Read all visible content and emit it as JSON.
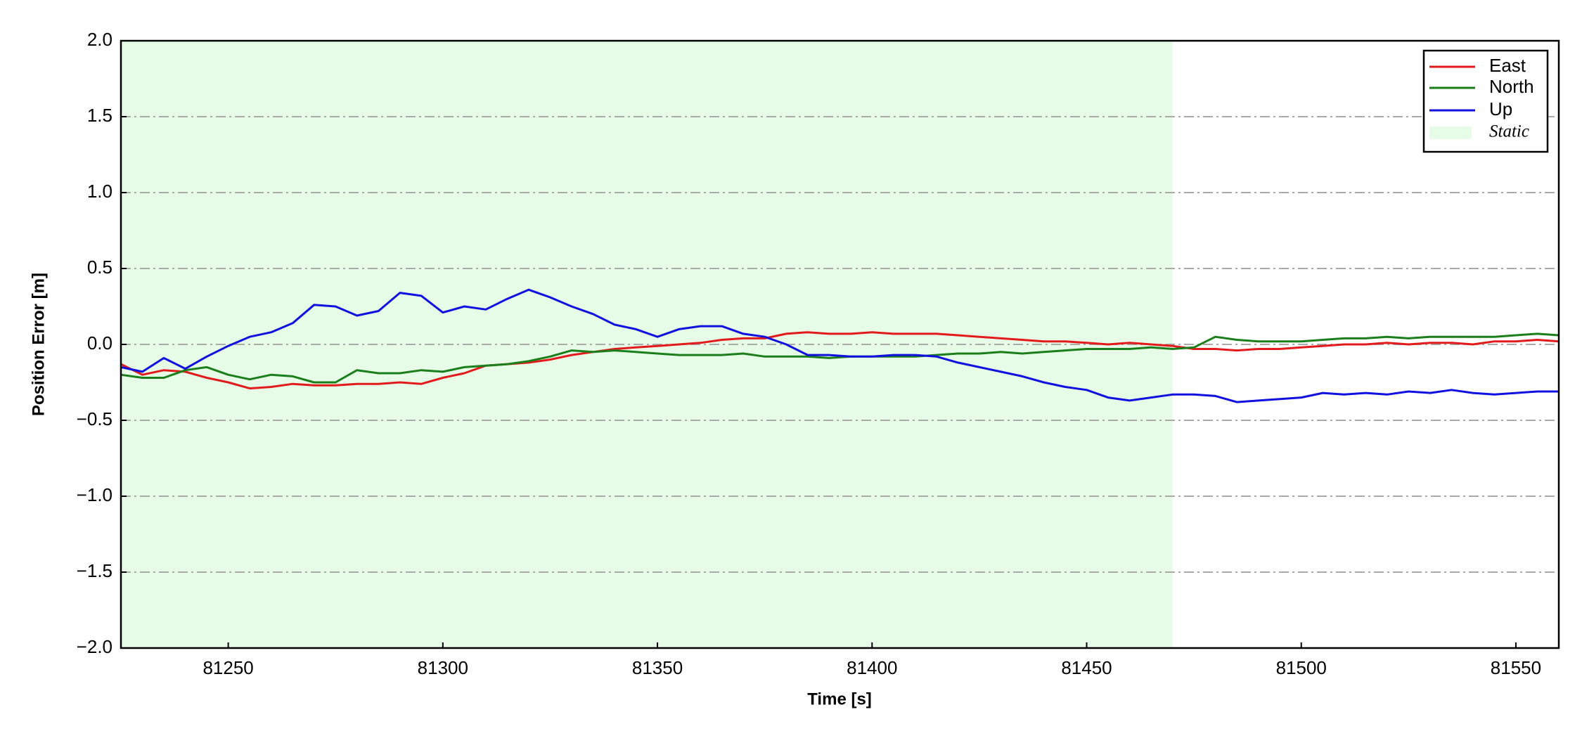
{
  "chart_data": {
    "type": "line",
    "xlabel": "Time [s]",
    "ylabel": "Position Error [m]",
    "xlim": [
      81225,
      81560
    ],
    "ylim": [
      -2,
      2
    ],
    "xticks": [
      81250,
      81300,
      81350,
      81400,
      81450,
      81500,
      81550
    ],
    "yticks": [
      {
        "value": -2,
        "label": "−2.0"
      },
      {
        "value": -1.5,
        "label": "−1.5"
      },
      {
        "value": -1,
        "label": "−1.0"
      },
      {
        "value": -0.5,
        "label": "−0.5"
      },
      {
        "value": 0,
        "label": "0.0"
      },
      0.5,
      {
        "value": 1,
        "label": "1.0"
      },
      1.5,
      {
        "value": 2,
        "label": "2.0"
      }
    ],
    "grid": true,
    "legend": "upper right",
    "spans": [
      {
        "name": "Static",
        "start": 81225,
        "end": 81470,
        "color": "#e6fce6"
      }
    ],
    "x": [
      81225,
      81230,
      81235,
      81240,
      81245,
      81250,
      81255,
      81260,
      81265,
      81270,
      81275,
      81280,
      81285,
      81290,
      81295,
      81300,
      81305,
      81310,
      81315,
      81320,
      81325,
      81330,
      81335,
      81340,
      81345,
      81350,
      81355,
      81360,
      81365,
      81370,
      81375,
      81380,
      81385,
      81390,
      81395,
      81400,
      81405,
      81410,
      81415,
      81420,
      81425,
      81430,
      81435,
      81440,
      81445,
      81450,
      81455,
      81460,
      81465,
      81470,
      81475,
      81480,
      81485,
      81490,
      81495,
      81500,
      81505,
      81510,
      81515,
      81520,
      81525,
      81530,
      81535,
      81540,
      81545,
      81550,
      81555,
      81560
    ],
    "series": [
      {
        "name": "East",
        "color": "#e31a1c",
        "values": [
          -0.13,
          -0.2,
          -0.17,
          -0.18,
          -0.22,
          -0.25,
          -0.29,
          -0.28,
          -0.26,
          -0.27,
          -0.27,
          -0.26,
          -0.26,
          -0.25,
          -0.26,
          -0.22,
          -0.19,
          -0.14,
          -0.13,
          -0.12,
          -0.1,
          -0.07,
          -0.05,
          -0.03,
          -0.02,
          -0.01,
          0.0,
          0.01,
          0.03,
          0.04,
          0.04,
          0.07,
          0.08,
          0.07,
          0.07,
          0.08,
          0.07,
          0.07,
          0.07,
          0.06,
          0.05,
          0.04,
          0.03,
          0.02,
          0.02,
          0.01,
          0.0,
          0.01,
          0.0,
          -0.01,
          -0.03,
          -0.03,
          -0.04,
          -0.03,
          -0.03,
          -0.02,
          -0.01,
          0.0,
          0.0,
          0.01,
          0.0,
          0.01,
          0.01,
          0.0,
          0.02,
          0.02,
          0.03,
          0.02
        ]
      },
      {
        "name": "North",
        "color": "#1a7f1a",
        "values": [
          -0.2,
          -0.22,
          -0.22,
          -0.17,
          -0.15,
          -0.2,
          -0.23,
          -0.2,
          -0.21,
          -0.25,
          -0.25,
          -0.17,
          -0.19,
          -0.19,
          -0.17,
          -0.18,
          -0.15,
          -0.14,
          -0.13,
          -0.11,
          -0.08,
          -0.04,
          -0.05,
          -0.04,
          -0.05,
          -0.06,
          -0.07,
          -0.07,
          -0.07,
          -0.06,
          -0.08,
          -0.08,
          -0.08,
          -0.09,
          -0.08,
          -0.08,
          -0.08,
          -0.08,
          -0.07,
          -0.06,
          -0.06,
          -0.05,
          -0.06,
          -0.05,
          -0.04,
          -0.03,
          -0.03,
          -0.03,
          -0.02,
          -0.03,
          -0.02,
          0.05,
          0.03,
          0.02,
          0.02,
          0.02,
          0.03,
          0.04,
          0.04,
          0.05,
          0.04,
          0.05,
          0.05,
          0.05,
          0.05,
          0.06,
          0.07,
          0.06
        ]
      },
      {
        "name": "Up",
        "color": "#1010e0",
        "values": [
          -0.15,
          -0.18,
          -0.09,
          -0.16,
          -0.08,
          -0.01,
          0.05,
          0.08,
          0.14,
          0.26,
          0.25,
          0.19,
          0.22,
          0.34,
          0.32,
          0.21,
          0.25,
          0.23,
          0.3,
          0.36,
          0.31,
          0.25,
          0.2,
          0.13,
          0.1,
          0.05,
          0.1,
          0.12,
          0.12,
          0.07,
          0.05,
          0.0,
          -0.07,
          -0.07,
          -0.08,
          -0.08,
          -0.07,
          -0.07,
          -0.08,
          -0.12,
          -0.15,
          -0.18,
          -0.21,
          -0.25,
          -0.28,
          -0.3,
          -0.35,
          -0.37,
          -0.35,
          -0.33,
          -0.33,
          -0.34,
          -0.38,
          -0.37,
          -0.36,
          -0.35,
          -0.32,
          -0.33,
          -0.32,
          -0.33,
          -0.31,
          -0.32,
          -0.3,
          -0.32,
          -0.33,
          -0.32,
          -0.31,
          -0.31
        ]
      }
    ]
  }
}
